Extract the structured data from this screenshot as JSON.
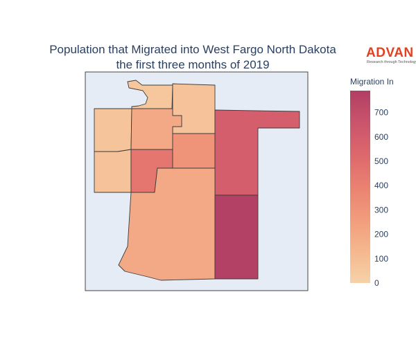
{
  "chart_data": {
    "type": "choropleth",
    "title_lines": [
      "Population that Migrated into West Fargo North Dakota",
      "the first three months of 2019"
    ],
    "colorbar": {
      "title": "Migration In",
      "range": [
        0,
        790
      ],
      "ticks": [
        0,
        100,
        200,
        300,
        400,
        500,
        600,
        700
      ],
      "colorscale": [
        "#f6d2a9",
        "#f5b78e",
        "#f19c7c",
        "#ea8171",
        "#dd686c",
        "#ca546c",
        "#b13f64"
      ]
    },
    "regions": [
      {
        "id": "north-central-west",
        "value": 60
      },
      {
        "id": "north-central-east",
        "value": 80
      },
      {
        "id": "northwest",
        "value": 70
      },
      {
        "id": "west-middle",
        "value": 80
      },
      {
        "id": "central-north",
        "value": 200
      },
      {
        "id": "central-middle",
        "value": 460
      },
      {
        "id": "central-east",
        "value": 300
      },
      {
        "id": "east-north",
        "value": 590
      },
      {
        "id": "south-large",
        "value": 200
      },
      {
        "id": "southeast",
        "value": 780
      }
    ],
    "background_color": "#e5ecf6"
  },
  "logo": {
    "text": "ADVAN",
    "tagline": "Research through Technology",
    "color": "#e2401f"
  }
}
